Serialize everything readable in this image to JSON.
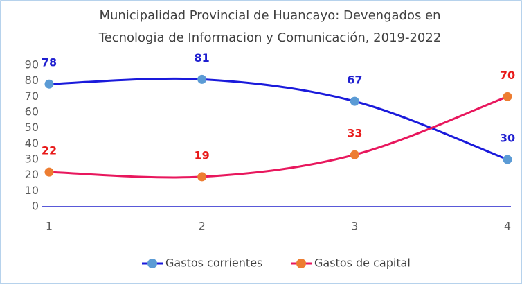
{
  "chart_data": {
    "type": "line",
    "title": [
      "Municipalidad Provincial de Huancayo: Devengados en",
      "Tecnologia de Informacion y Comunicación, 2019-2022"
    ],
    "x": [
      1,
      2,
      3,
      4
    ],
    "xlim": [
      1,
      4
    ],
    "xticks": [
      1,
      2,
      3,
      4
    ],
    "ylim": [
      0,
      90
    ],
    "yticks": [
      0,
      10,
      20,
      30,
      40,
      50,
      60,
      70,
      80,
      90
    ],
    "smooth": true,
    "legend": "bottom",
    "series": [
      {
        "name": "Gastos corrientes",
        "color": "#1a1adb",
        "marker_color": "#5b9bd5",
        "label_color": "#1f1fd0",
        "values": [
          78,
          81,
          67,
          30
        ]
      },
      {
        "name": "Gastos de capital",
        "color": "#e8175d",
        "marker_color": "#ed7d31",
        "label_color": "#e81a1a",
        "values": [
          22,
          19,
          33,
          70
        ]
      }
    ]
  }
}
